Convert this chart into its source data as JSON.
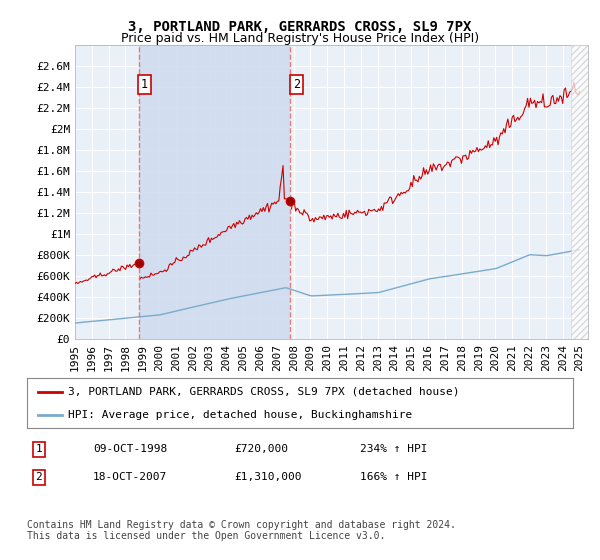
{
  "title": "3, PORTLAND PARK, GERRARDS CROSS, SL9 7PX",
  "subtitle": "Price paid vs. HM Land Registry's House Price Index (HPI)",
  "background_color": "#ffffff",
  "plot_bg_color": "#dde8f5",
  "plot_bg_color2": "#eaf0f8",
  "grid_color": "#ffffff",
  "ylim": [
    0,
    2800000
  ],
  "yticks": [
    0,
    200000,
    400000,
    600000,
    800000,
    1000000,
    1200000,
    1400000,
    1600000,
    1800000,
    2000000,
    2200000,
    2400000,
    2600000
  ],
  "ytick_labels": [
    "£0",
    "£200K",
    "£400K",
    "£600K",
    "£800K",
    "£1M",
    "£1.2M",
    "£1.4M",
    "£1.6M",
    "£1.8M",
    "£2M",
    "£2.2M",
    "£2.4M",
    "£2.6M"
  ],
  "sale1_date": 1998.78,
  "sale1_price": 720000,
  "sale2_date": 2007.79,
  "sale2_price": 1310000,
  "sale1_label": "1",
  "sale2_label": "2",
  "legend_red_label": "3, PORTLAND PARK, GERRARDS CROSS, SL9 7PX (detached house)",
  "legend_blue_label": "HPI: Average price, detached house, Buckinghamshire",
  "table_row1": [
    "1",
    "09-OCT-1998",
    "£720,000",
    "234% ↑ HPI"
  ],
  "table_row2": [
    "2",
    "18-OCT-2007",
    "£1,310,000",
    "166% ↑ HPI"
  ],
  "footer": "Contains HM Land Registry data © Crown copyright and database right 2024.\nThis data is licensed under the Open Government Licence v3.0.",
  "red_color": "#cc0000",
  "blue_color": "#7aabcc",
  "title_fontsize": 10,
  "subtitle_fontsize": 9,
  "tick_fontsize": 8,
  "legend_fontsize": 8,
  "table_fontsize": 8,
  "footer_fontsize": 7,
  "xmin": 1995.0,
  "xmax": 2025.5,
  "xticks": [
    1995,
    1996,
    1997,
    1998,
    1999,
    2000,
    2001,
    2002,
    2003,
    2004,
    2005,
    2006,
    2007,
    2008,
    2009,
    2010,
    2011,
    2012,
    2013,
    2014,
    2015,
    2016,
    2017,
    2018,
    2019,
    2020,
    2021,
    2022,
    2023,
    2024,
    2025
  ]
}
